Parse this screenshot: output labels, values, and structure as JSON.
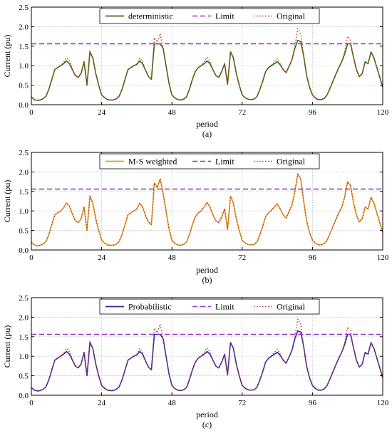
{
  "colors": {
    "deterministic": "#3d6b0f",
    "ms_weighted": "#e0a21a",
    "probabilistic": "#2a2aa8",
    "limit": "#9b2ec2",
    "original": "#c0392b",
    "grid": "#b5b5b5"
  },
  "chart_data": [
    {
      "type": "line",
      "caption": "(a)",
      "xlabel": "period",
      "ylabel": "Current (pu)",
      "xlim": [
        0,
        120
      ],
      "ylim": [
        0,
        2.5
      ],
      "xticks": [
        "0",
        "24",
        "48",
        "72",
        "96",
        "120"
      ],
      "yticks": [
        "0.0",
        "0.5",
        "1.0",
        "1.5",
        "2.0",
        "2.5"
      ],
      "grid": true,
      "legend_position": "top-center",
      "limit_value": 1.56,
      "series": [
        {
          "name": "deterministic",
          "style": "solid",
          "color_key": "deterministic",
          "source": "main"
        },
        {
          "name": "Limit",
          "style": "dashed",
          "color_key": "limit",
          "source": "limit"
        },
        {
          "name": "Original",
          "style": "dotted",
          "color_key": "original",
          "source": "original"
        }
      ]
    },
    {
      "type": "line",
      "caption": "(b)",
      "xlabel": "period",
      "ylabel": "Current (pu)",
      "xlim": [
        0,
        120
      ],
      "ylim": [
        0,
        2.5
      ],
      "xticks": [
        "0",
        "24",
        "48",
        "72",
        "96",
        "120"
      ],
      "yticks": [
        "0.0",
        "0.5",
        "1.0",
        "1.5",
        "2.0",
        "2.5"
      ],
      "grid": true,
      "legend_position": "top-center",
      "limit_value": 1.56,
      "series": [
        {
          "name": "M-S weighted",
          "style": "solid",
          "color_key": "ms_weighted",
          "source": "original"
        },
        {
          "name": "Limit",
          "style": "dashed",
          "color_key": "limit",
          "source": "limit"
        },
        {
          "name": "Original",
          "style": "dotted",
          "color_key": "original",
          "source": "original"
        }
      ]
    },
    {
      "type": "line",
      "caption": "(c)",
      "xlabel": "period",
      "ylabel": "Current (pu)",
      "xlim": [
        0,
        120
      ],
      "ylim": [
        0,
        2.5
      ],
      "xticks": [
        "0",
        "24",
        "48",
        "72",
        "96",
        "120"
      ],
      "yticks": [
        "0.0",
        "0.5",
        "1.0",
        "1.5",
        "2.0",
        "2.5"
      ],
      "grid": true,
      "legend_position": "top-center",
      "limit_value": 1.56,
      "series": [
        {
          "name": "Probabilistic",
          "style": "solid",
          "color_key": "probabilistic",
          "source": "main"
        },
        {
          "name": "Limit",
          "style": "dashed",
          "color_key": "limit",
          "source": "limit"
        },
        {
          "name": "Original",
          "style": "dotted",
          "color_key": "original",
          "source": "original"
        }
      ]
    }
  ],
  "original_values": [
    0.2,
    0.13,
    0.11,
    0.12,
    0.15,
    0.22,
    0.4,
    0.65,
    0.9,
    0.95,
    1.0,
    1.08,
    1.2,
    1.12,
    0.92,
    0.75,
    0.7,
    0.8,
    1.1,
    0.5,
    1.38,
    1.2,
    0.8,
    0.5,
    0.25,
    0.18,
    0.13,
    0.12,
    0.12,
    0.15,
    0.22,
    0.4,
    0.65,
    0.9,
    0.95,
    1.0,
    1.05,
    1.2,
    1.1,
    0.88,
    0.72,
    0.65,
    1.72,
    1.6,
    1.82,
    1.45,
    1.0,
    0.55,
    0.25,
    0.17,
    0.13,
    0.12,
    0.14,
    0.2,
    0.4,
    0.65,
    0.85,
    0.95,
    1.0,
    1.1,
    1.22,
    1.1,
    0.9,
    0.75,
    0.7,
    0.85,
    1.05,
    0.52,
    1.38,
    1.2,
    0.8,
    0.5,
    0.25,
    0.18,
    0.14,
    0.13,
    0.14,
    0.2,
    0.38,
    0.6,
    0.85,
    0.95,
    1.02,
    1.1,
    1.18,
    1.05,
    0.9,
    0.82,
    0.98,
    1.15,
    1.5,
    1.95,
    1.82,
    1.25,
    0.75,
    0.45,
    0.25,
    0.17,
    0.13,
    0.13,
    0.16,
    0.25,
    0.42,
    0.6,
    0.78,
    0.95,
    1.1,
    1.35,
    1.75,
    1.65,
    1.22,
    0.9,
    0.72,
    0.8,
    1.1,
    1.05,
    1.35,
    1.2,
    0.95,
    0.7,
    0.45
  ],
  "main_values": [
    0.2,
    0.13,
    0.11,
    0.12,
    0.15,
    0.22,
    0.4,
    0.65,
    0.9,
    0.95,
    1.0,
    1.05,
    1.12,
    1.05,
    0.9,
    0.75,
    0.7,
    0.8,
    1.1,
    0.5,
    1.35,
    1.2,
    0.8,
    0.5,
    0.25,
    0.18,
    0.13,
    0.12,
    0.12,
    0.15,
    0.22,
    0.4,
    0.65,
    0.9,
    0.95,
    1.0,
    1.03,
    1.12,
    1.05,
    0.88,
    0.72,
    0.65,
    1.56,
    1.56,
    1.56,
    1.45,
    1.0,
    0.55,
    0.25,
    0.17,
    0.13,
    0.12,
    0.14,
    0.2,
    0.4,
    0.65,
    0.85,
    0.95,
    1.0,
    1.05,
    1.12,
    1.05,
    0.9,
    0.75,
    0.7,
    0.85,
    1.05,
    0.52,
    1.35,
    1.2,
    0.8,
    0.5,
    0.25,
    0.18,
    0.14,
    0.13,
    0.14,
    0.2,
    0.38,
    0.6,
    0.85,
    0.95,
    1.0,
    1.05,
    1.1,
    1.02,
    0.9,
    0.82,
    0.98,
    1.15,
    1.45,
    1.65,
    1.62,
    1.25,
    0.75,
    0.45,
    0.25,
    0.17,
    0.13,
    0.13,
    0.16,
    0.25,
    0.42,
    0.6,
    0.78,
    0.95,
    1.1,
    1.3,
    1.56,
    1.56,
    1.22,
    0.9,
    0.72,
    0.8,
    1.1,
    1.05,
    1.35,
    1.2,
    0.95,
    0.7,
    0.45
  ]
}
